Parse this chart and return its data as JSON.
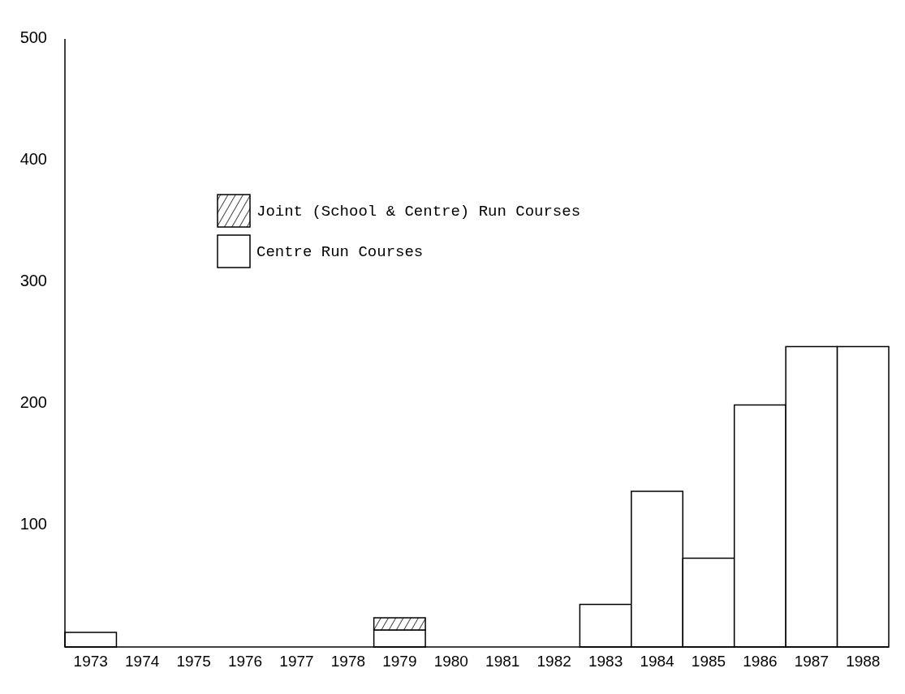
{
  "chart_data": {
    "type": "bar",
    "stacked": true,
    "categories": [
      "1973",
      "1974",
      "1975",
      "1976",
      "1977",
      "1978",
      "1979",
      "1980",
      "1981",
      "1982",
      "1983",
      "1984",
      "1985",
      "1986",
      "1987",
      "1988"
    ],
    "series": [
      {
        "name": "Centre Run Courses",
        "color": "#ffffff",
        "values": [
          12,
          null,
          null,
          null,
          null,
          null,
          14,
          null,
          null,
          null,
          35,
          128,
          73,
          199,
          247,
          247
        ]
      },
      {
        "name": "Joint (School & Centre) Run Courses",
        "color": "#000000",
        "values": [
          null,
          null,
          null,
          null,
          null,
          null,
          10,
          null,
          null,
          null,
          null,
          null,
          null,
          null,
          null,
          null
        ]
      }
    ],
    "ylim": [
      0,
      500
    ],
    "yticks": [
      100,
      200,
      300,
      400,
      500
    ],
    "legend": "top left"
  }
}
